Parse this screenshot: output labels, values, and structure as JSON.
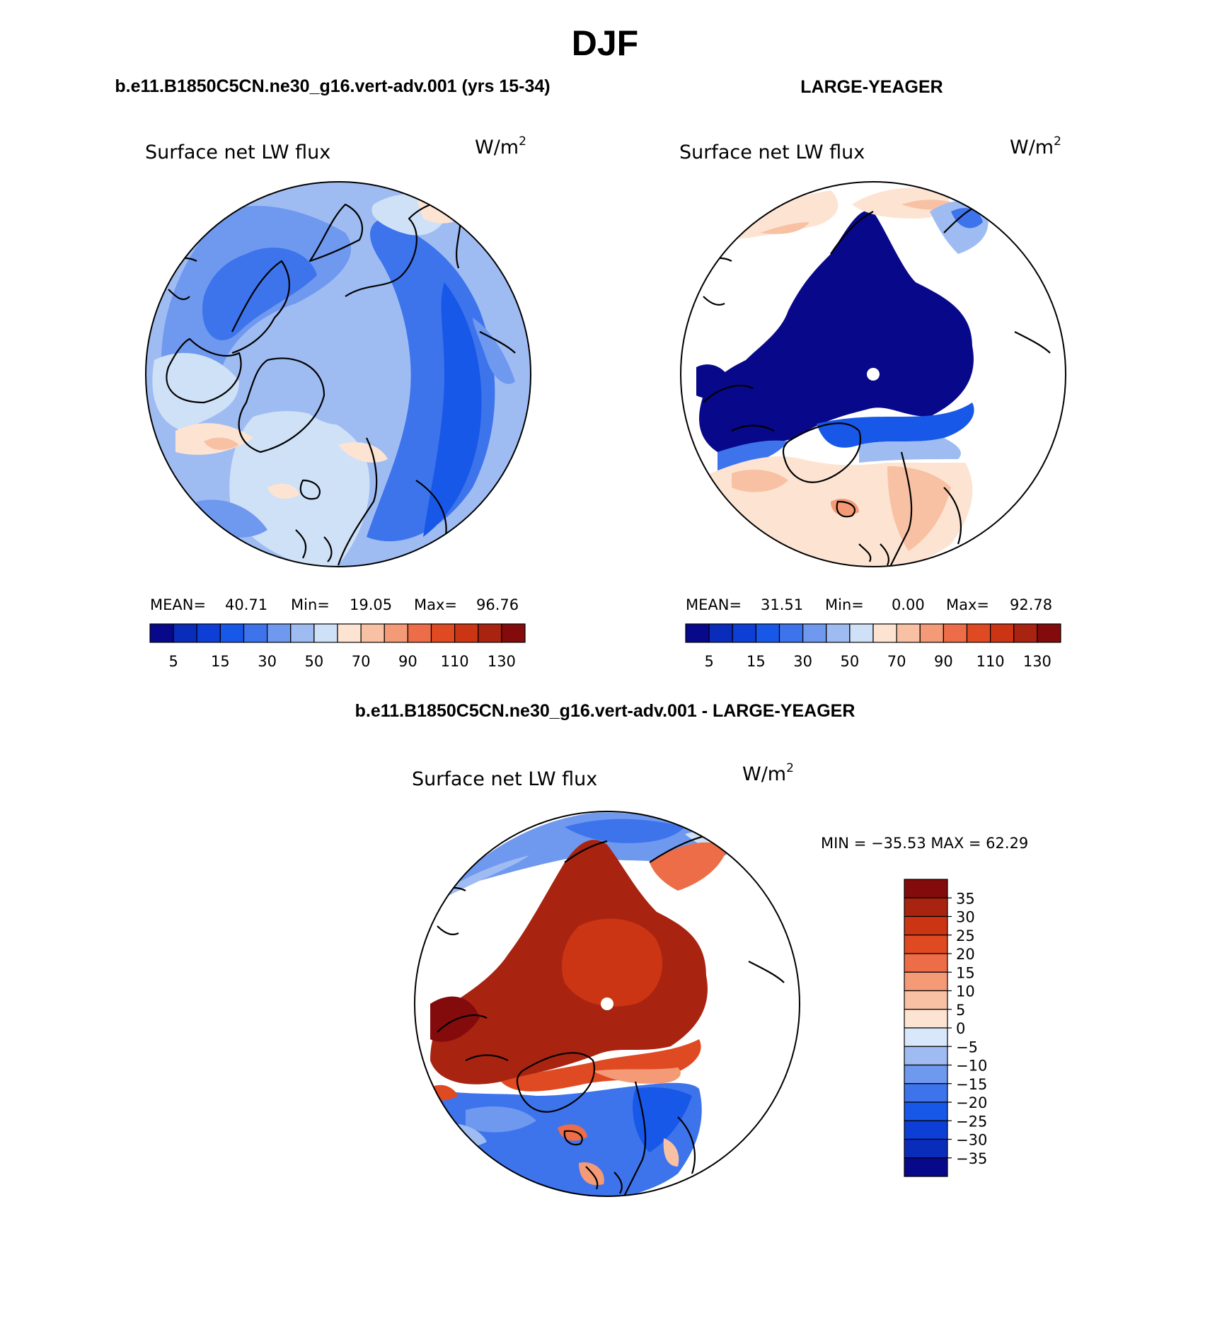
{
  "figure": {
    "title": "DJF",
    "panel1_title": "b.e11.B1850C5CN.ne30_g16.vert-adv.001 (yrs 15-34)",
    "panel2_title": "LARGE-YEAGER",
    "panel3_title": "b.e11.B1850C5CN.ne30_g16.vert-adv.001 - LARGE-YEAGER"
  },
  "colors": {
    "abs": [
      "#08088a",
      "#0a2cbb",
      "#0d3ed6",
      "#1858e8",
      "#3d74ec",
      "#6f98ef",
      "#9fbcf2",
      "#cfe1f7",
      "#fde4d2",
      "#f9c1a4",
      "#f49a76",
      "#ec6d47",
      "#e04a22",
      "#cc3514",
      "#a92410",
      "#840b0b"
    ],
    "diff": [
      "#08088a",
      "#0a2cbb",
      "#0d3ed6",
      "#1858e8",
      "#3d74ec",
      "#6f98ef",
      "#9fbcf2",
      "#d8e8fa",
      "#fde4d2",
      "#f9c1a4",
      "#f49a76",
      "#ec6d47",
      "#e04a22",
      "#cc3514",
      "#a92410",
      "#840b0b"
    ]
  },
  "chart_data": [
    {
      "type": "heatmap",
      "projection": "north-polar-stereographic",
      "title": "Surface net LW flux",
      "units": "W/m",
      "units_exponent": "2",
      "stats": {
        "mean_label": "MEAN=",
        "mean": "40.71",
        "min_label": "Min=",
        "min": "19.05",
        "max_label": "Max=",
        "max": "96.76"
      },
      "colorbar_ticks": [
        "5",
        "15",
        "30",
        "50",
        "70",
        "90",
        "110",
        "130"
      ],
      "colorbar_levels": [
        5,
        10,
        15,
        20,
        30,
        40,
        50,
        60,
        70,
        80,
        90,
        100,
        110,
        120,
        130
      ]
    },
    {
      "type": "heatmap",
      "projection": "north-polar-stereographic",
      "title": "Surface net LW flux",
      "units": "W/m",
      "units_exponent": "2",
      "stats": {
        "mean_label": "MEAN=",
        "mean": "31.51",
        "min_label": "Min=",
        "min": "0.00",
        "max_label": "Max=",
        "max": "92.78"
      },
      "colorbar_ticks": [
        "5",
        "15",
        "30",
        "50",
        "70",
        "90",
        "110",
        "130"
      ],
      "colorbar_levels": [
        5,
        10,
        15,
        20,
        30,
        40,
        50,
        60,
        70,
        80,
        90,
        100,
        110,
        120,
        130
      ]
    },
    {
      "type": "heatmap",
      "projection": "north-polar-stereographic",
      "title": "Surface net LW flux",
      "units": "W/m",
      "units_exponent": "2",
      "minmax_text": "MIN = −35.53 MAX =  62.29",
      "min": -35.53,
      "max": 62.29,
      "colorbar_ticks": [
        "35",
        "30",
        "25",
        "20",
        "15",
        "10",
        "5",
        "0",
        "−5",
        "−10",
        "−15",
        "−20",
        "−25",
        "−30",
        "−35"
      ],
      "colorbar_levels": [
        35,
        30,
        25,
        20,
        15,
        10,
        5,
        0,
        -5,
        -10,
        -15,
        -20,
        -25,
        -30,
        -35
      ]
    }
  ]
}
